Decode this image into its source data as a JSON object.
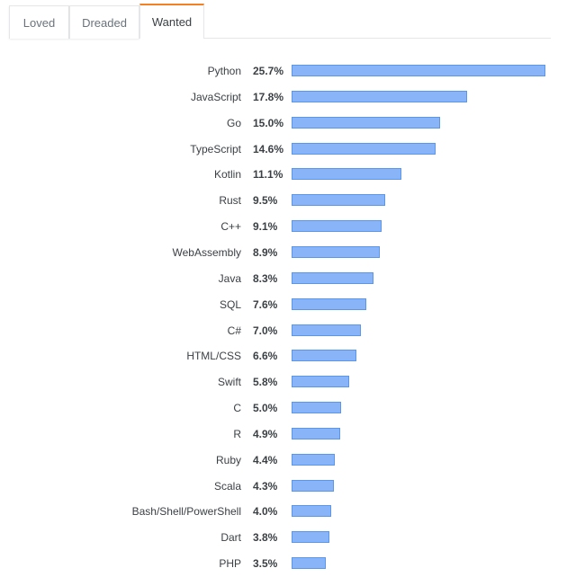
{
  "tabs": [
    {
      "label": "Loved",
      "active": false
    },
    {
      "label": "Dreaded",
      "active": false
    },
    {
      "label": "Wanted",
      "active": true
    }
  ],
  "colors": {
    "bar_fill": "#8ab4f8",
    "bar_border": "#5a97ec",
    "active_tab_accent": "#f48024"
  },
  "chart_data": {
    "type": "bar",
    "orientation": "horizontal",
    "title": "Wanted",
    "xlabel": "",
    "ylabel": "",
    "grid": false,
    "legend": null,
    "value_suffix": "%",
    "categories": [
      "Python",
      "JavaScript",
      "Go",
      "TypeScript",
      "Kotlin",
      "Rust",
      "C++",
      "WebAssembly",
      "Java",
      "SQL",
      "C#",
      "HTML/CSS",
      "Swift",
      "C",
      "R",
      "Ruby",
      "Scala",
      "Bash/Shell/PowerShell",
      "Dart",
      "PHP"
    ],
    "values": [
      25.7,
      17.8,
      15.0,
      14.6,
      11.1,
      9.5,
      9.1,
      8.9,
      8.3,
      7.6,
      7.0,
      6.6,
      5.8,
      5.0,
      4.9,
      4.4,
      4.3,
      4.0,
      3.8,
      3.5
    ],
    "value_labels": [
      "25.7%",
      "17.8%",
      "15.0%",
      "14.6%",
      "11.1%",
      "9.5%",
      "9.1%",
      "8.9%",
      "8.3%",
      "7.6%",
      "7.0%",
      "6.6%",
      "5.8%",
      "5.0%",
      "4.9%",
      "4.4%",
      "4.3%",
      "4.0%",
      "3.8%",
      "3.5%"
    ]
  }
}
